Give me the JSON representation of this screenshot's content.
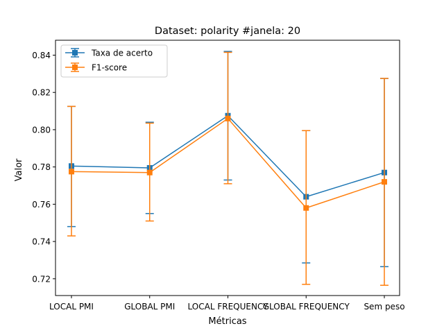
{
  "chart_data": {
    "type": "line",
    "title": "Dataset: polarity #janela: 20",
    "xlabel": "Métricas",
    "ylabel": "Valor",
    "categories": [
      "LOCAL PMI",
      "GLOBAL PMI",
      "LOCAL FREQUENCY",
      "GLOBAL FREQUENCY",
      "Sem peso"
    ],
    "ylim": [
      0.711,
      0.848
    ],
    "yticks": [
      0.72,
      0.74,
      0.76,
      0.78,
      0.8,
      0.82,
      0.84
    ],
    "ytick_labels": [
      "0.72",
      "0.74",
      "0.76",
      "0.78",
      "0.80",
      "0.82",
      "0.84"
    ],
    "grid": false,
    "legend_position": "top-left",
    "series": [
      {
        "name": "Taxa de acerto",
        "color": "#1f77b4",
        "marker": "square",
        "values": [
          0.7805,
          0.7795,
          0.8075,
          0.764,
          0.777
        ],
        "err_low": [
          0.748,
          0.755,
          0.773,
          0.7285,
          0.7265
        ],
        "err_high": [
          0.8125,
          0.804,
          0.842,
          0.7995,
          0.8275
        ]
      },
      {
        "name": "F1-score",
        "color": "#ff7f0e",
        "marker": "square",
        "values": [
          0.7775,
          0.777,
          0.806,
          0.758,
          0.772
        ],
        "err_low": [
          0.743,
          0.751,
          0.771,
          0.717,
          0.7165
        ],
        "err_high": [
          0.8125,
          0.8035,
          0.8415,
          0.7995,
          0.8275
        ]
      }
    ]
  }
}
